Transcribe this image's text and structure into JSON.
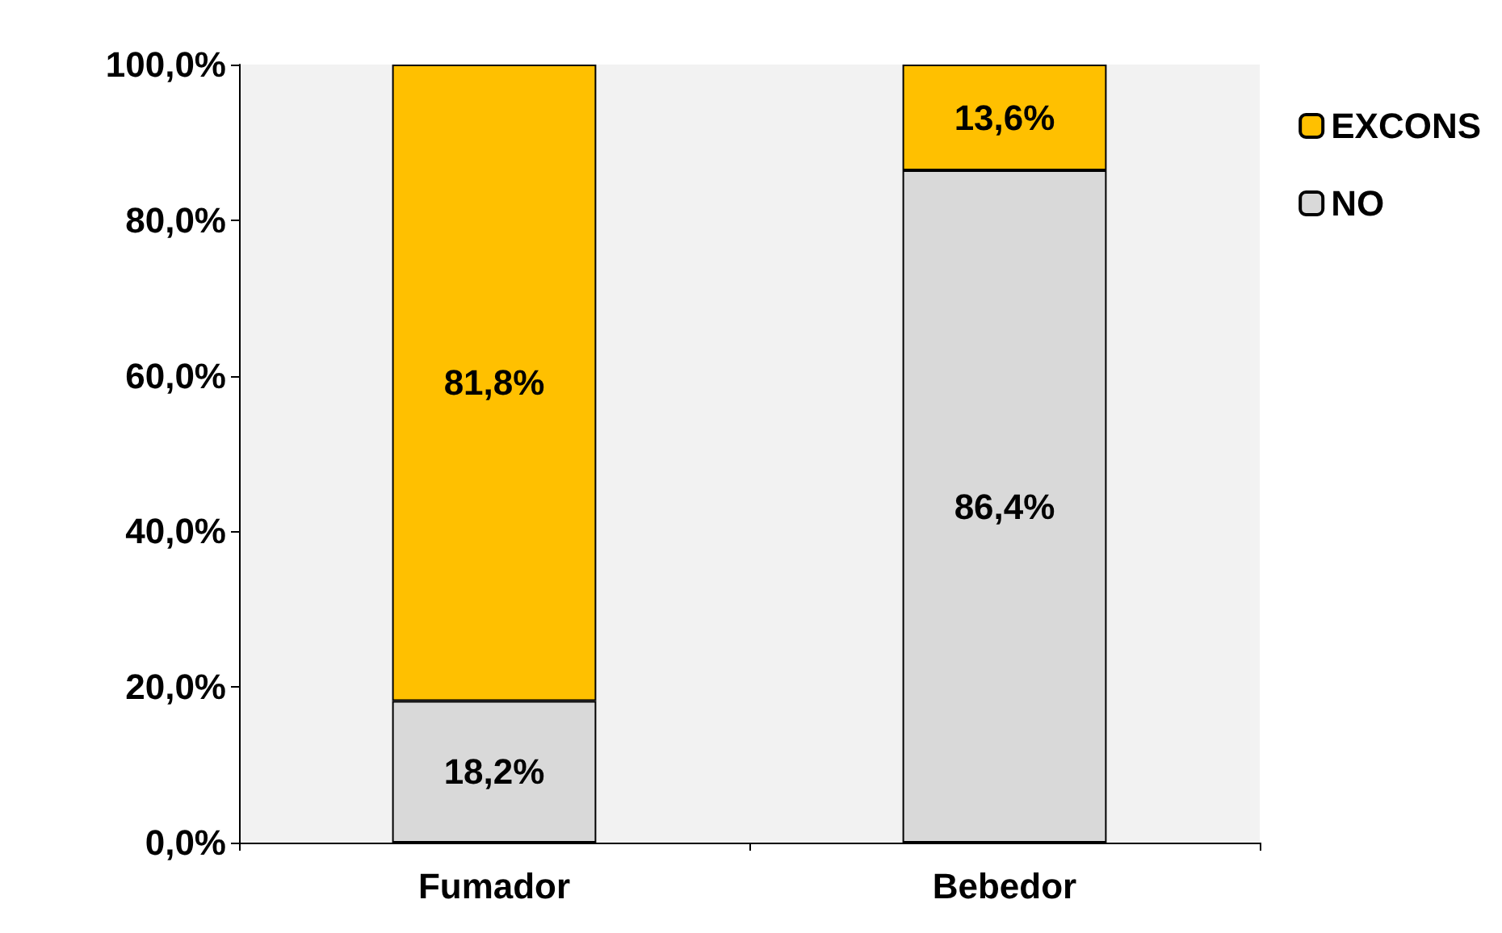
{
  "chart_data": {
    "type": "bar",
    "stacked": true,
    "categories": [
      "Fumador",
      "Bebedor"
    ],
    "series": [
      {
        "name": "NO",
        "color": "#d9d9d9",
        "values": [
          18.2,
          86.4
        ],
        "value_labels": [
          "18,2%",
          "86,4%"
        ]
      },
      {
        "name": "EXCONS",
        "color": "#ffc000",
        "values": [
          81.8,
          13.6
        ],
        "value_labels": [
          "81,8%",
          "13,6%"
        ]
      }
    ],
    "ylim": [
      0,
      100
    ],
    "yticks": [
      {
        "value": 0,
        "label": "0,0%"
      },
      {
        "value": 20,
        "label": "20,0%"
      },
      {
        "value": 40,
        "label": "40,0%"
      },
      {
        "value": 60,
        "label": "60,0%"
      },
      {
        "value": 80,
        "label": "80,0%"
      },
      {
        "value": 100,
        "label": "100,0%"
      }
    ],
    "grid": false,
    "legend": "right"
  }
}
